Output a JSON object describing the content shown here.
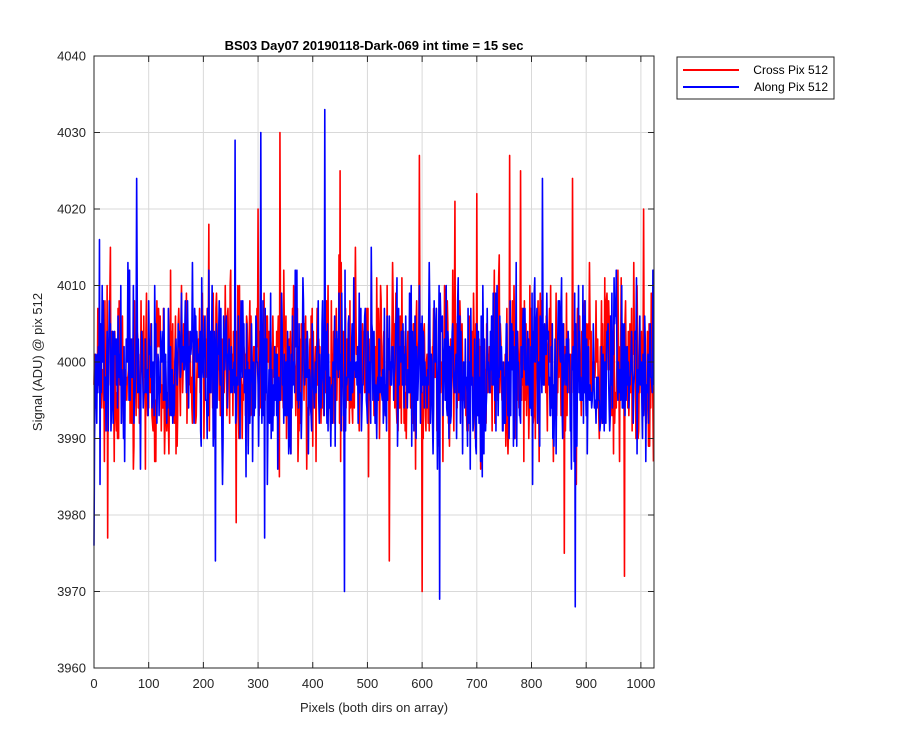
{
  "chart_data": {
    "type": "line",
    "title": "BS03 Day07 20190118-Dark-069 int time = 15 sec",
    "xlabel": "Pixels (both dirs on array)",
    "ylabel": "Signal (ADU) @ pix 512",
    "xlim": [
      0,
      1024
    ],
    "ylim": [
      3960,
      4040
    ],
    "xticks": [
      0,
      100,
      200,
      300,
      400,
      500,
      600,
      700,
      800,
      900,
      1000
    ],
    "yticks": [
      3960,
      3970,
      3980,
      3990,
      4000,
      4010,
      4020,
      4030,
      4040
    ],
    "grid": true,
    "legend_position": "outside-top-right",
    "series": [
      {
        "name": "Cross Pix 512",
        "color": "#ff0000",
        "mean": 3999,
        "spread": 5.5,
        "n_points": 1024,
        "peaks": [
          [
            0,
            3997
          ],
          [
            25,
            3977
          ],
          [
            30,
            4015
          ],
          [
            140,
            4012
          ],
          [
            210,
            4018
          ],
          [
            260,
            3979
          ],
          [
            300,
            4020
          ],
          [
            340,
            4030
          ],
          [
            365,
            4010
          ],
          [
            450,
            4025
          ],
          [
            540,
            3974
          ],
          [
            595,
            4027
          ],
          [
            600,
            3970
          ],
          [
            660,
            4021
          ],
          [
            700,
            4022
          ],
          [
            760,
            4027
          ],
          [
            780,
            4025
          ],
          [
            860,
            3975
          ],
          [
            875,
            4024
          ],
          [
            970,
            3972
          ],
          [
            1005,
            4020
          ],
          [
            1023,
            3987
          ]
        ]
      },
      {
        "name": "Along Pix 512",
        "color": "#0000ff",
        "mean": 3999,
        "spread": 5.5,
        "n_points": 1024,
        "peaks": [
          [
            0,
            3976
          ],
          [
            10,
            4016
          ],
          [
            78,
            4024
          ],
          [
            258,
            4029
          ],
          [
            222,
            3974
          ],
          [
            305,
            4030
          ],
          [
            312,
            3977
          ],
          [
            422,
            4033
          ],
          [
            458,
            3970
          ],
          [
            632,
            3969
          ],
          [
            820,
            4024
          ],
          [
            880,
            3968
          ],
          [
            1023,
            3997
          ]
        ]
      }
    ]
  }
}
